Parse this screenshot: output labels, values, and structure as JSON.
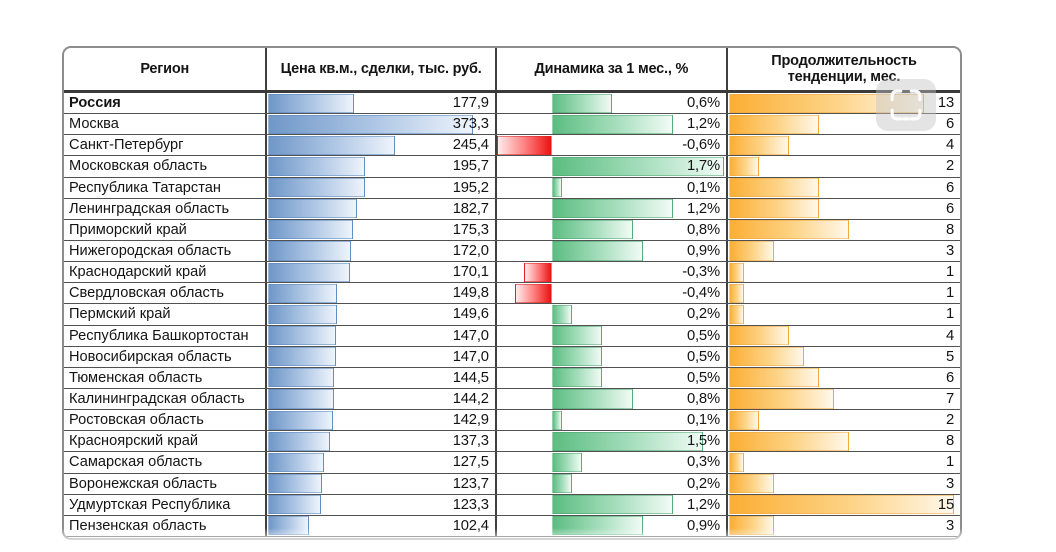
{
  "chart_data": {
    "type": "table",
    "title": "",
    "columns": [
      {
        "id": "region",
        "label": "Регион"
      },
      {
        "id": "price",
        "label": "Цена кв.м., сделки, тыс. руб.",
        "bar": "blue"
      },
      {
        "id": "dynamics",
        "label": "Динамика за 1 мес., %",
        "bar": "green-red"
      },
      {
        "id": "duration",
        "label": "Продолжительность тенденции, мес.",
        "bar": "orange"
      }
    ],
    "rows": [
      {
        "region": "Россия",
        "bold": true,
        "price": 177.9,
        "price_text": "177,9",
        "dynamics": 0.6,
        "dynamics_text": "0,6%",
        "duration": 13,
        "duration_text": "13"
      },
      {
        "region": "Москва",
        "price": 373.3,
        "price_text": "373,3",
        "dynamics": 1.2,
        "dynamics_text": "1,2%",
        "duration": 6,
        "duration_text": "6"
      },
      {
        "region": "Санкт-Петербург",
        "price": 245.4,
        "price_text": "245,4",
        "dynamics": -0.6,
        "dynamics_text": "-0,6%",
        "duration": 4,
        "duration_text": "4"
      },
      {
        "region": "Московская область",
        "price": 195.7,
        "price_text": "195,7",
        "dynamics": 1.7,
        "dynamics_text": "1,7%",
        "duration": 2,
        "duration_text": "2"
      },
      {
        "region": "Республика Татарстан",
        "price": 195.2,
        "price_text": "195,2",
        "dynamics": 0.1,
        "dynamics_text": "0,1%",
        "duration": 6,
        "duration_text": "6"
      },
      {
        "region": "Ленинградская область",
        "price": 182.7,
        "price_text": "182,7",
        "dynamics": 1.2,
        "dynamics_text": "1,2%",
        "duration": 6,
        "duration_text": "6"
      },
      {
        "region": "Приморский край",
        "price": 175.3,
        "price_text": "175,3",
        "dynamics": 0.8,
        "dynamics_text": "0,8%",
        "duration": 8,
        "duration_text": "8"
      },
      {
        "region": "Нижегородская область",
        "price": 172.0,
        "price_text": "172,0",
        "dynamics": 0.9,
        "dynamics_text": "0,9%",
        "duration": 3,
        "duration_text": "3"
      },
      {
        "region": "Краснодарский край",
        "price": 170.1,
        "price_text": "170,1",
        "dynamics": -0.3,
        "dynamics_text": "-0,3%",
        "duration": 1,
        "duration_text": "1"
      },
      {
        "region": "Свердловская область",
        "price": 149.8,
        "price_text": "149,8",
        "dynamics": -0.4,
        "dynamics_text": "-0,4%",
        "duration": 1,
        "duration_text": "1"
      },
      {
        "region": "Пермский край",
        "price": 149.6,
        "price_text": "149,6",
        "dynamics": 0.2,
        "dynamics_text": "0,2%",
        "duration": 1,
        "duration_text": "1"
      },
      {
        "region": "Республика Башкортостан",
        "price": 147.0,
        "price_text": "147,0",
        "dynamics": 0.5,
        "dynamics_text": "0,5%",
        "duration": 4,
        "duration_text": "4"
      },
      {
        "region": "Новосибирская область",
        "price": 147.0,
        "price_text": "147,0",
        "dynamics": 0.5,
        "dynamics_text": "0,5%",
        "duration": 5,
        "duration_text": "5"
      },
      {
        "region": "Тюменская область",
        "price": 144.5,
        "price_text": "144,5",
        "dynamics": 0.5,
        "dynamics_text": "0,5%",
        "duration": 6,
        "duration_text": "6"
      },
      {
        "region": "Калининградская область",
        "price": 144.2,
        "price_text": "144,2",
        "dynamics": 0.8,
        "dynamics_text": "0,8%",
        "duration": 7,
        "duration_text": "7"
      },
      {
        "region": "Ростовская область",
        "price": 142.9,
        "price_text": "142,9",
        "dynamics": 0.1,
        "dynamics_text": "0,1%",
        "duration": 2,
        "duration_text": "2"
      },
      {
        "region": "Красноярский край",
        "price": 137.3,
        "price_text": "137,3",
        "dynamics": 1.5,
        "dynamics_text": "1,5%",
        "duration": 8,
        "duration_text": "8"
      },
      {
        "region": "Самарская область",
        "price": 127.5,
        "price_text": "127,5",
        "dynamics": 0.3,
        "dynamics_text": "0,3%",
        "duration": 1,
        "duration_text": "1"
      },
      {
        "region": "Воронежская область",
        "price": 123.7,
        "price_text": "123,7",
        "dynamics": 0.2,
        "dynamics_text": "0,2%",
        "duration": 3,
        "duration_text": "3"
      },
      {
        "region": "Удмуртская Республика",
        "price": 123.3,
        "price_text": "123,3",
        "dynamics": 1.2,
        "dynamics_text": "1,2%",
        "duration": 15,
        "duration_text": "15"
      },
      {
        "region": "Пензенская область",
        "price": 102.4,
        "price_text": "102,4",
        "dynamics": 0.9,
        "dynamics_text": "0,9%",
        "duration": 3,
        "duration_text": "3"
      }
    ],
    "scales": {
      "price": {
        "min": 36,
        "max": 373.3,
        "max_pct": 90
      },
      "dynamics": {
        "axis_pct": 24,
        "neg_max": 0.6,
        "pos_max": 1.7,
        "pos_max_pct": 75
      },
      "duration": {
        "min": 0,
        "max": 15,
        "max_pct": 97
      }
    },
    "layout_hints": {
      "bar_direction": "horizontal",
      "negative_bars": "red-left-of-axis",
      "grid": "on"
    }
  },
  "colors": {
    "bar_blue": "#6f97c8",
    "bar_blue_fade": "#eef4fb",
    "bar_green": "#5cbd81",
    "bar_green_fade": "#f1fbf5",
    "bar_red": "#ee1111",
    "bar_red_fade": "#ffecec",
    "bar_orange": "#fbae34",
    "bar_orange_fade": "#fff8ea",
    "frame": "#8d8d8d",
    "grid": "#4a4a4a",
    "text": "#141414"
  },
  "overlay": {
    "icon": "photo-placeholder-icon"
  }
}
